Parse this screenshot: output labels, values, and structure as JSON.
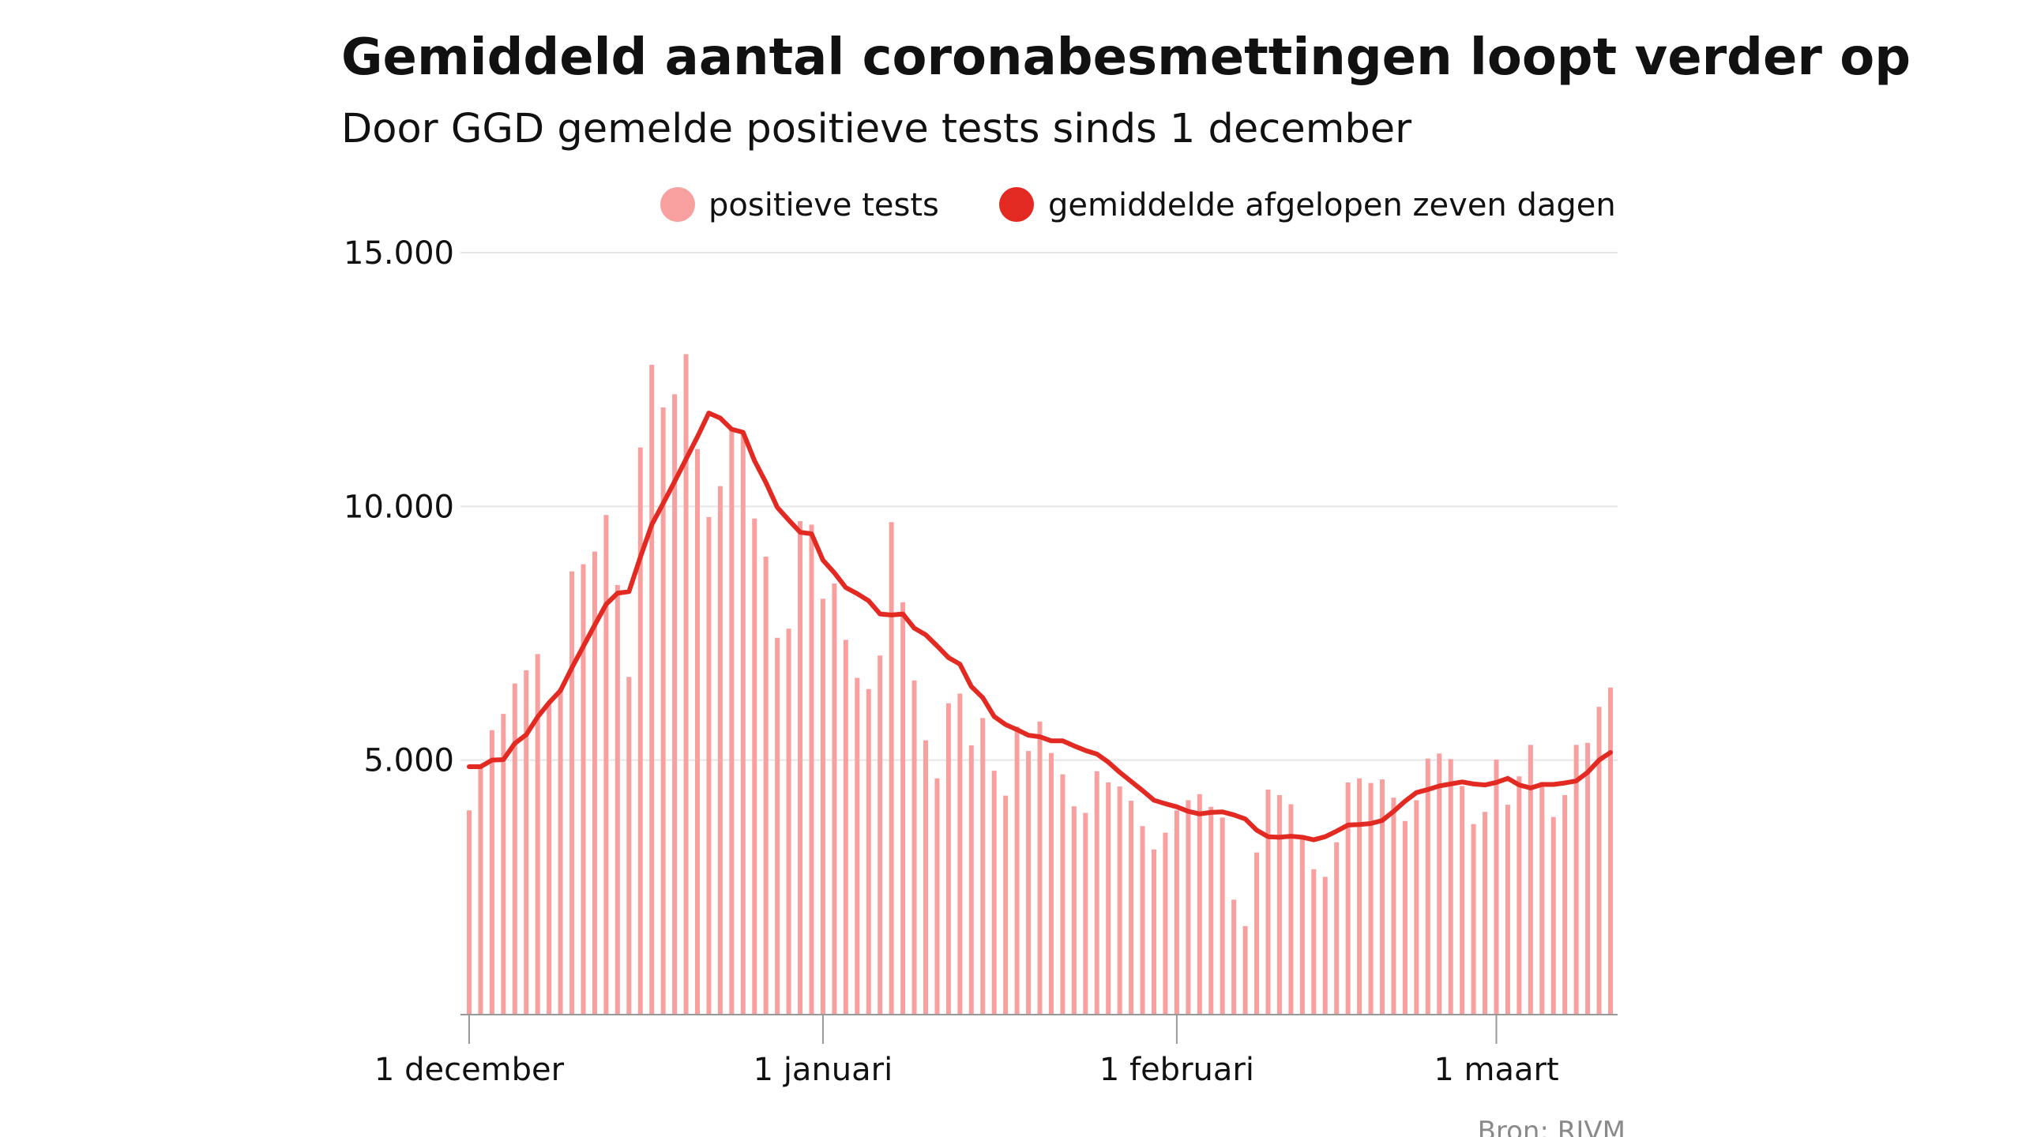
{
  "colors": {
    "bar": "#f8a0a0",
    "line": "#e32a22",
    "legend_bar": "#f8a0a0",
    "legend_line": "#e32a22",
    "grid": "#e6e6e6",
    "axis": "#999999",
    "source": "#8a8a8a"
  },
  "legend": {
    "bars_label": "positieve tests",
    "line_label": "gemiddelde afgelopen zeven dagen",
    "bars_icon": "filled-circle-light-red",
    "line_icon": "filled-circle-red",
    "placement": "top-right"
  },
  "source": "Bron: RIVM",
  "chart_data": {
    "type": "bar",
    "title": "Gemiddeld aantal coronabesmettingen loopt verder op",
    "subtitle": "Door GGD gemelde positieve tests sinds 1 december",
    "xlabel": "",
    "ylabel": "",
    "ylim": [
      0,
      15000
    ],
    "y_ticks": [
      5000,
      10000,
      15000
    ],
    "y_tick_labels": [
      "5.000",
      "10.000",
      "15.000"
    ],
    "x_ticks": [
      {
        "index": 0,
        "label": "1 december"
      },
      {
        "index": 31,
        "label": "1 januari"
      },
      {
        "index": 62,
        "label": "1 februari"
      },
      {
        "index": 90,
        "label": "1 maart"
      }
    ],
    "grid": true,
    "series": [
      {
        "name": "positieve tests",
        "type": "bar",
        "values": [
          4010,
          4850,
          5590,
          5910,
          6510,
          6770,
          7090,
          6150,
          6420,
          8720,
          8860,
          9110,
          9830,
          8450,
          6640,
          11160,
          12790,
          11950,
          12210,
          13000,
          11130,
          9790,
          10400,
          11530,
          11470,
          9760,
          9010,
          7410,
          7590,
          9710,
          9640,
          8180,
          8480,
          7370,
          6620,
          6400,
          7060,
          9690,
          8110,
          6570,
          5390,
          4640,
          6120,
          6310,
          5290,
          5830,
          4790,
          4300,
          5660,
          5180,
          5760,
          5140,
          4720,
          4090,
          3960,
          4780,
          4560,
          4480,
          4200,
          3700,
          3240,
          3570,
          4010,
          4210,
          4330,
          4080,
          3870,
          2250,
          1730,
          3180,
          4420,
          4310,
          4130,
          3460,
          2850,
          2700,
          3380,
          4560,
          4640,
          4550,
          4620,
          4260,
          3800,
          4210,
          5030,
          5130,
          5020,
          4490,
          3740,
          3980,
          5010,
          4120,
          4680,
          5300,
          4570,
          3880,
          4310,
          5300,
          5340,
          6050,
          6430
        ]
      },
      {
        "name": "gemiddelde afgelopen zeven dagen",
        "type": "line",
        "values": [
          4870,
          4870,
          5000,
          5010,
          5330,
          5500,
          5850,
          6130,
          6370,
          6820,
          7240,
          7660,
          8070,
          8290,
          8320,
          9000,
          9640,
          10060,
          10490,
          10930,
          11370,
          11840,
          11740,
          11520,
          11460,
          10900,
          10470,
          9980,
          9730,
          9490,
          9460,
          8940,
          8690,
          8400,
          8280,
          8140,
          7880,
          7860,
          7880,
          7600,
          7470,
          7250,
          7020,
          6890,
          6450,
          6230,
          5860,
          5700,
          5600,
          5490,
          5460,
          5380,
          5380,
          5280,
          5190,
          5120,
          4960,
          4760,
          4580,
          4400,
          4210,
          4140,
          4080,
          3990,
          3940,
          3970,
          3980,
          3920,
          3840,
          3620,
          3490,
          3480,
          3500,
          3480,
          3430,
          3490,
          3600,
          3720,
          3730,
          3750,
          3810,
          3990,
          4190,
          4360,
          4420,
          4490,
          4530,
          4570,
          4530,
          4510,
          4560,
          4640,
          4510,
          4450,
          4520,
          4520,
          4550,
          4590,
          4760,
          5000,
          5150
        ]
      }
    ]
  }
}
